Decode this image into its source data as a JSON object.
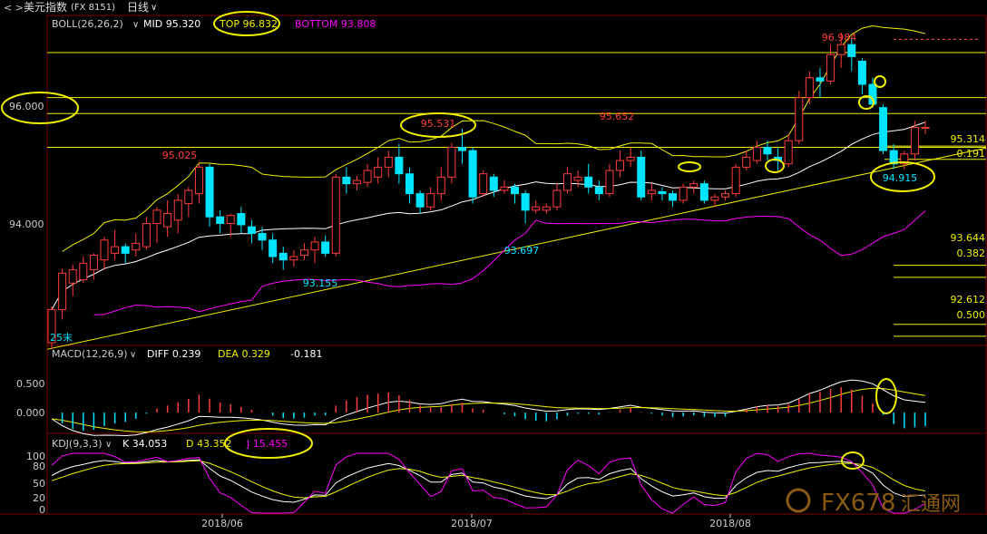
{
  "toolbar": {
    "title": "美元指数",
    "code": "(FX 8151)",
    "period": "日线",
    "period_arrow": "∨"
  },
  "colors": {
    "up": "#ff3b3b",
    "down": "#00e5ff",
    "yellow": "#f0f000",
    "white": "#ffffff",
    "magenta": "#ff00ff",
    "fib": "#ffff00",
    "highlight": "#f0f000",
    "axis_text": "#cccccc",
    "grid": "#7a0000",
    "watermark": "#8a5a10"
  },
  "main_panel": {
    "indicator": "BOLL(26,26,2)",
    "mid_label": "MID 95.320",
    "top_label": "TOP 96.832",
    "bottom_label": "BOTTOM 93.808",
    "y_ticks": [
      "96.000",
      "94.000"
    ],
    "price_labels": {
      "p1": "95.025",
      "p2": "95.531",
      "p3": "95.652",
      "p4": "96.984",
      "p5": "93.155",
      "p6": "93.697",
      "p7": "94.915"
    },
    "fib_levels": [
      {
        "price": "95.314",
        "ratio": "0.191"
      },
      {
        "price": "93.644",
        "ratio": "0.382"
      },
      {
        "price": "92.612",
        "ratio": "0.500"
      }
    ],
    "start_marker": "25末"
  },
  "macd_panel": {
    "indicator": "MACD(12,26,9)",
    "diff_label": "DIFF 0.239",
    "dea_label": "DEA 0.329",
    "macd_value": "-0.181",
    "y_ticks": [
      "0.500",
      "0.000"
    ]
  },
  "kdj_panel": {
    "indicator": "KDJ(9,3,3)",
    "k_label": "K 34.053",
    "d_label": "D 43.352",
    "j_label": "J 15.455",
    "y_ticks": [
      "100",
      "80",
      "50",
      "20",
      "0"
    ]
  },
  "x_axis": {
    "labels": [
      "2018/06",
      "2018/07",
      "2018/08"
    ]
  },
  "watermark": {
    "text": "FX678",
    "subtext": "汇通网"
  },
  "chart_data": {
    "type": "candlestick",
    "ylim": [
      92.3,
      97.2
    ],
    "candles": [
      [
        92.3,
        92.8,
        92.2,
        92.85
      ],
      [
        92.8,
        93.35,
        92.65,
        93.42
      ],
      [
        93.2,
        93.4,
        93.0,
        93.48
      ],
      [
        93.25,
        93.5,
        93.2,
        93.6
      ],
      [
        93.4,
        93.62,
        93.25,
        93.65
      ],
      [
        93.55,
        93.85,
        93.4,
        93.9
      ],
      [
        93.65,
        93.75,
        93.55,
        94.0
      ],
      [
        93.75,
        93.65,
        93.5,
        93.8
      ],
      [
        93.7,
        93.8,
        93.6,
        93.95
      ],
      [
        93.75,
        94.1,
        93.7,
        94.2
      ],
      [
        94.1,
        94.3,
        93.8,
        94.35
      ],
      [
        94.05,
        94.25,
        93.9,
        94.45
      ],
      [
        94.15,
        94.45,
        93.95,
        94.55
      ],
      [
        94.4,
        94.6,
        94.2,
        94.65
      ],
      [
        94.55,
        94.95,
        94.4,
        95.02
      ],
      [
        94.95,
        94.2,
        94.05,
        95.0
      ],
      [
        94.2,
        94.1,
        93.95,
        94.3
      ],
      [
        94.1,
        94.22,
        93.9,
        94.25
      ],
      [
        94.25,
        94.08,
        93.95,
        94.35
      ],
      [
        94.05,
        93.95,
        93.8,
        94.15
      ],
      [
        93.95,
        93.85,
        93.7,
        94.05
      ],
      [
        93.85,
        93.6,
        93.5,
        93.95
      ],
      [
        93.65,
        93.55,
        93.4,
        93.75
      ],
      [
        93.55,
        93.6,
        93.45,
        93.7
      ],
      [
        93.62,
        93.7,
        93.55,
        93.8
      ],
      [
        93.7,
        93.82,
        93.5,
        93.9
      ],
      [
        93.82,
        93.65,
        93.6,
        93.92
      ],
      [
        93.65,
        94.8,
        93.6,
        94.85
      ],
      [
        94.8,
        94.7,
        94.55,
        94.95
      ],
      [
        94.7,
        94.75,
        94.6,
        94.82
      ],
      [
        94.72,
        94.9,
        94.65,
        95.0
      ],
      [
        94.8,
        94.95,
        94.7,
        95.1
      ],
      [
        94.95,
        95.1,
        94.8,
        95.2
      ],
      [
        95.1,
        94.85,
        94.7,
        95.3
      ],
      [
        94.85,
        94.55,
        94.4,
        94.95
      ],
      [
        94.55,
        94.35,
        94.25,
        94.6
      ],
      [
        94.35,
        94.55,
        94.3,
        94.65
      ],
      [
        94.55,
        94.8,
        94.45,
        94.95
      ],
      [
        94.8,
        95.25,
        94.7,
        95.32
      ],
      [
        95.25,
        95.2,
        95.0,
        95.53
      ],
      [
        95.2,
        94.5,
        94.4,
        95.25
      ],
      [
        94.55,
        94.85,
        94.5,
        94.9
      ],
      [
        94.8,
        94.6,
        94.5,
        94.85
      ],
      [
        94.6,
        94.65,
        94.55,
        94.75
      ],
      [
        94.65,
        94.55,
        94.4,
        94.7
      ],
      [
        94.55,
        94.3,
        94.1,
        94.6
      ],
      [
        94.3,
        94.35,
        94.25,
        94.45
      ],
      [
        94.3,
        94.35,
        94.25,
        94.4
      ],
      [
        94.35,
        94.6,
        94.3,
        94.7
      ],
      [
        94.6,
        94.85,
        94.55,
        94.95
      ],
      [
        94.75,
        94.8,
        94.65,
        94.9
      ],
      [
        94.8,
        94.65,
        94.55,
        95.0
      ],
      [
        94.65,
        94.55,
        94.45,
        94.75
      ],
      [
        94.55,
        94.9,
        94.5,
        95.0
      ],
      [
        94.9,
        95.05,
        94.8,
        95.2
      ],
      [
        95.05,
        95.1,
        94.95,
        95.25
      ],
      [
        95.1,
        94.5,
        94.45,
        95.2
      ],
      [
        94.55,
        94.6,
        94.45,
        94.7
      ],
      [
        94.58,
        94.55,
        94.45,
        94.65
      ],
      [
        94.55,
        94.45,
        94.35,
        94.6
      ],
      [
        94.45,
        94.65,
        94.4,
        94.7
      ],
      [
        94.65,
        94.7,
        94.55,
        94.75
      ],
      [
        94.7,
        94.45,
        94.4,
        94.75
      ],
      [
        94.45,
        94.5,
        94.35,
        94.55
      ],
      [
        94.5,
        94.55,
        94.45,
        94.6
      ],
      [
        94.55,
        94.95,
        94.5,
        95.0
      ],
      [
        94.95,
        95.1,
        94.9,
        95.2
      ],
      [
        95.05,
        95.25,
        95.0,
        95.35
      ],
      [
        95.25,
        95.15,
        95.05,
        95.35
      ],
      [
        95.1,
        95.05,
        94.9,
        95.25
      ],
      [
        95.0,
        95.35,
        94.95,
        95.45
      ],
      [
        95.35,
        96.0,
        95.3,
        96.1
      ],
      [
        96.0,
        96.3,
        95.9,
        96.4
      ],
      [
        96.3,
        96.25,
        96.0,
        96.45
      ],
      [
        96.25,
        96.65,
        96.2,
        96.8
      ],
      [
        96.65,
        96.8,
        96.45,
        96.98
      ],
      [
        96.8,
        96.62,
        96.4,
        96.9
      ],
      [
        96.55,
        96.2,
        96.05,
        96.6
      ],
      [
        96.2,
        95.9,
        95.85,
        96.3
      ],
      [
        95.85,
        95.2,
        95.15,
        95.9
      ],
      [
        95.2,
        95.0,
        94.92,
        95.3
      ],
      [
        95.0,
        95.15,
        94.92,
        95.2
      ],
      [
        95.15,
        95.55,
        95.05,
        95.65
      ],
      [
        95.55,
        95.55,
        95.45,
        95.65
      ]
    ]
  }
}
